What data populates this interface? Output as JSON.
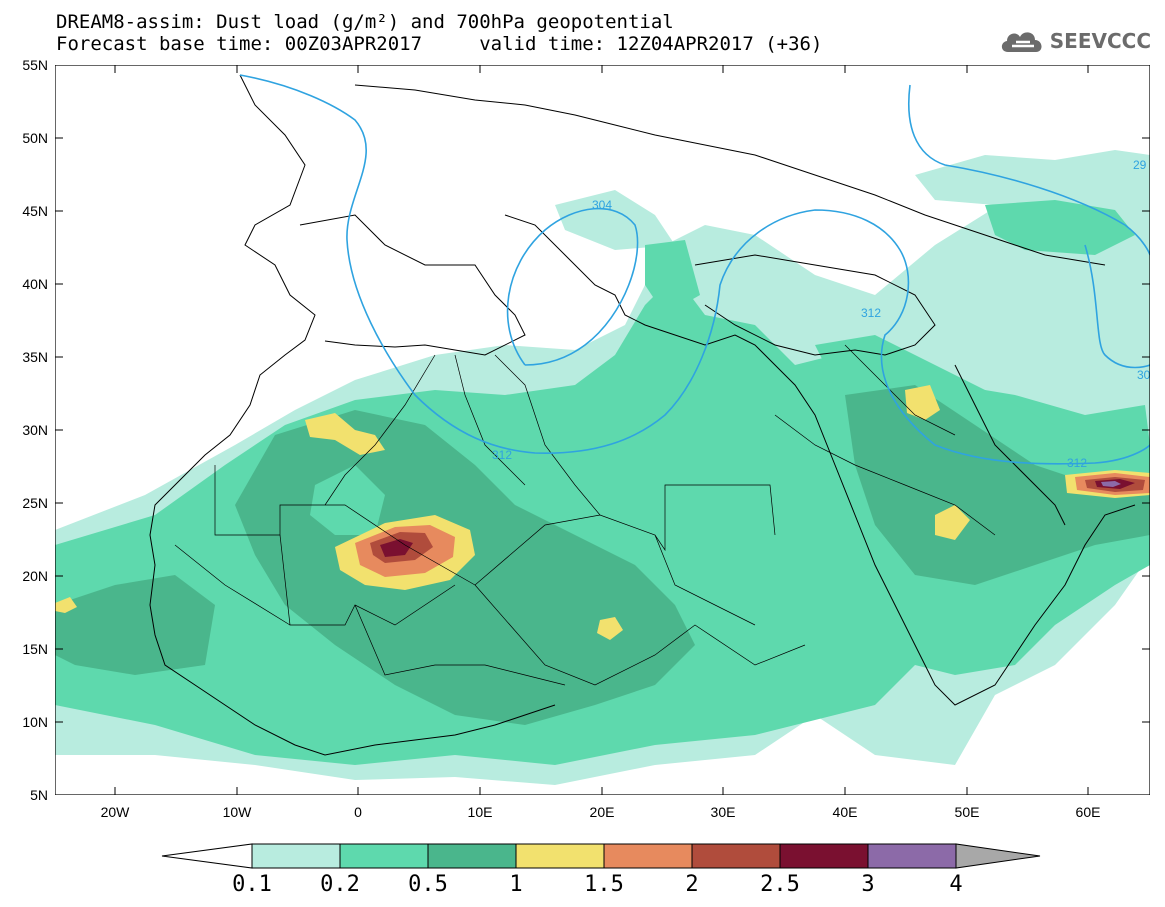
{
  "title": {
    "line1": "DREAM8-assim: Dust load (g/m²) and 700hPa geopotential",
    "line2": "Forecast base time: 00Z03APR2017     valid time: 12Z04APR2017 (+36)"
  },
  "logo": {
    "text": "SEEVCCC",
    "icon": "cloud-icon"
  },
  "map": {
    "lat_labels": [
      "55N",
      "50N",
      "45N",
      "40N",
      "35N",
      "30N",
      "25N",
      "20N",
      "15N",
      "10N",
      "5N"
    ],
    "lon_labels": [
      "20W",
      "10W",
      "0",
      "10E",
      "20E",
      "30E",
      "40E",
      "50E",
      "60E"
    ],
    "contour_labels": [
      "304",
      "312",
      "312",
      "312",
      "29",
      "30"
    ]
  },
  "colorbar": {
    "labels": [
      "0.1",
      "0.2",
      "0.5",
      "1",
      "1.5",
      "2",
      "2.5",
      "3",
      "4"
    ],
    "colors": [
      "#ffffff",
      "#b8ecdf",
      "#5ed9ad",
      "#4ab68c",
      "#f2e16e",
      "#e78a5e",
      "#b04c3c",
      "#7a1030",
      "#8c6aa8",
      "#a8a8a8"
    ]
  }
}
